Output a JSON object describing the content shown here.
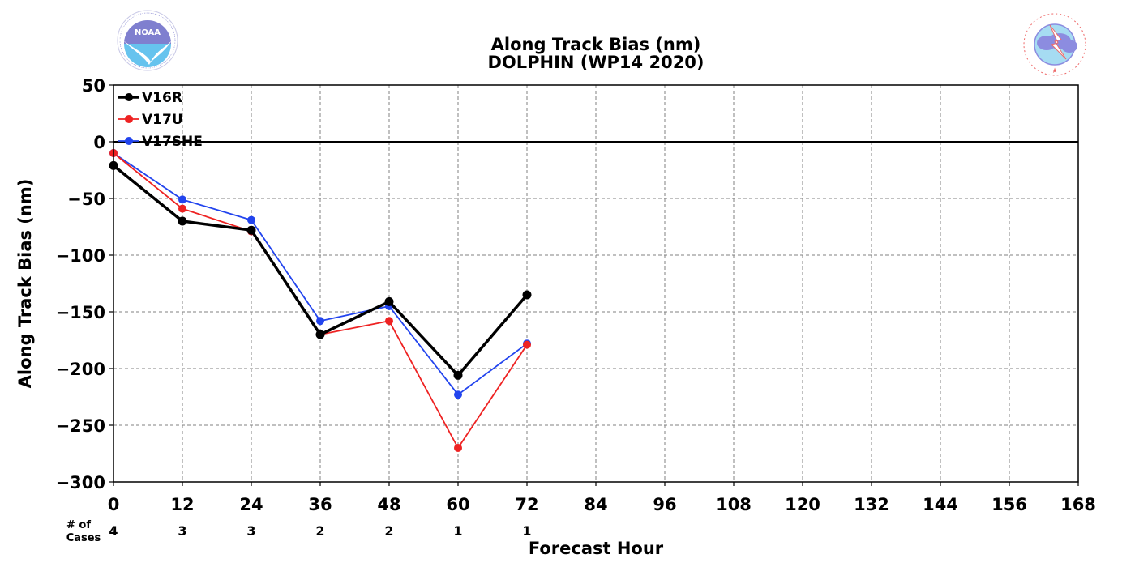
{
  "chart_data": {
    "type": "line",
    "title": "Along Track Bias (nm)",
    "subtitle": "DOLPHIN (WP14 2020)",
    "xlabel": "Forecast Hour",
    "ylabel": "Along Track Bias (nm)",
    "xlim": [
      0,
      168
    ],
    "ylim": [
      -300,
      50
    ],
    "xticks": [
      0,
      12,
      24,
      36,
      48,
      60,
      72,
      84,
      96,
      108,
      120,
      132,
      144,
      156,
      168
    ],
    "yticks": [
      50,
      0,
      -50,
      -100,
      -150,
      -200,
      -250,
      -300
    ],
    "ytick_labels": [
      "50",
      "0",
      "−50",
      "−100",
      "−150",
      "−200",
      "−250",
      "−300"
    ],
    "grid": true,
    "legend_position": "top-left",
    "cases_label_line1": "# of",
    "cases_label_line2": "Cases",
    "cases": [
      {
        "x": 0,
        "n": "4"
      },
      {
        "x": 12,
        "n": "3"
      },
      {
        "x": 24,
        "n": "3"
      },
      {
        "x": 36,
        "n": "2"
      },
      {
        "x": 48,
        "n": "2"
      },
      {
        "x": 60,
        "n": "1"
      },
      {
        "x": 72,
        "n": "1"
      }
    ],
    "series": [
      {
        "name": "V16R",
        "color": "#000000",
        "x": [
          0,
          12,
          24,
          36,
          48,
          60,
          72
        ],
        "values": [
          -21,
          -70,
          -78,
          -170,
          -141,
          -206,
          -135
        ]
      },
      {
        "name": "V17U",
        "color": "#ee2222",
        "x": [
          0,
          12,
          24,
          36,
          48,
          60,
          72
        ],
        "values": [
          -10,
          -59,
          -79,
          -170,
          -158,
          -270,
          -179
        ]
      },
      {
        "name": "V17SHE",
        "color": "#2244ee",
        "x": [
          0,
          12,
          24,
          36,
          48,
          60,
          72
        ],
        "values": [
          -10,
          -51,
          -69,
          -158,
          -145,
          -223,
          -178
        ]
      }
    ]
  },
  "logos": {
    "left": {
      "name": "NOAA",
      "text": "NOAA",
      "ring_text": "NATIONAL OCEANIC AND ATMOSPHERIC ADMINISTRATION · U.S. DEPARTMENT OF COMMERCE",
      "colors": [
        "#7f7fcf",
        "#66c3ee"
      ]
    },
    "right": {
      "name": "National Weather Service",
      "ring_text": "NATIONAL WEATHER SERVICE",
      "colors": [
        "#ee6b6b",
        "#8c8ce0",
        "#a6dcf2"
      ]
    }
  }
}
